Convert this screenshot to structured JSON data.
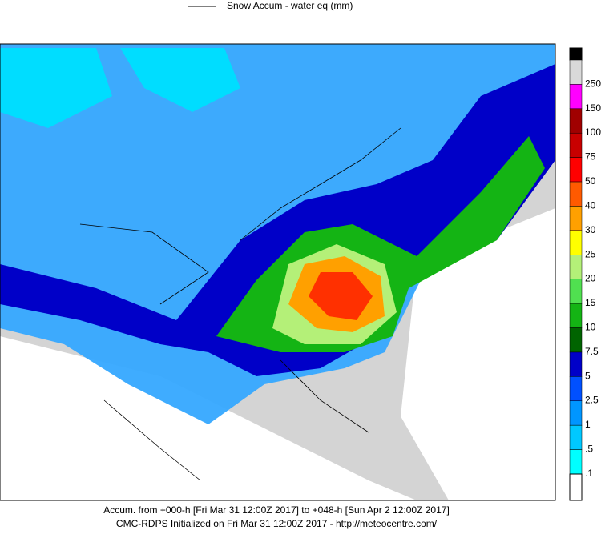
{
  "header": {
    "title": "Snow Accum - water eq (mm)"
  },
  "legend": [
    {
      "label": "250",
      "color": "#d9d9d9"
    },
    {
      "label": "150",
      "color": "#ff00ff"
    },
    {
      "label": "100",
      "color": "#a00000"
    },
    {
      "label": "75",
      "color": "#c80000"
    },
    {
      "label": "50",
      "color": "#ff0000"
    },
    {
      "label": "40",
      "color": "#ff5a00"
    },
    {
      "label": "30",
      "color": "#ffa000"
    },
    {
      "label": "25",
      "color": "#ffff00"
    },
    {
      "label": "20",
      "color": "#b4f078"
    },
    {
      "label": "15",
      "color": "#50e050"
    },
    {
      "label": "10",
      "color": "#14b414"
    },
    {
      "label": "7.5",
      "color": "#006400"
    },
    {
      "label": "5",
      "color": "#0000c8"
    },
    {
      "label": "2.5",
      "color": "#0050ff"
    },
    {
      "label": "1",
      "color": "#0096ff"
    },
    {
      "label": ".5",
      "color": "#00c8ff"
    },
    {
      "label": ".1",
      "color": "#00ffff"
    }
  ],
  "footer": {
    "line1": "Accum. from +000-h [Fri Mar 31 12:00Z 2017] to +048-h [Sun Apr 2 12:00Z 2017]",
    "line2": "CMC-RDPS Initialized on Fri Mar 31 12:00Z 2017 - http://meteocentre.com/"
  }
}
